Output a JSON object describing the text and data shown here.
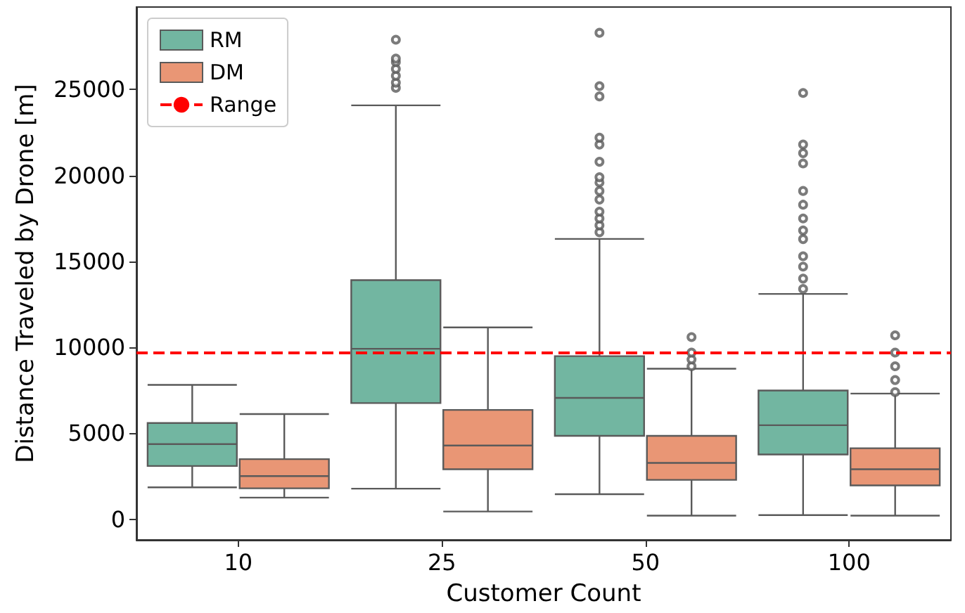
{
  "chart_data": {
    "type": "box",
    "xlabel": "Customer Count",
    "ylabel": "Distance Traveled by Drone [m]",
    "categories": [
      "10",
      "25",
      "50",
      "100"
    ],
    "ylim": [
      -1200,
      29800
    ],
    "yticks": [
      0,
      5000,
      10000,
      15000,
      20000,
      25000
    ],
    "grid": false,
    "legend": "top left",
    "marker": "circle",
    "series": [
      {
        "name": "RM",
        "color": "#72b6a1",
        "boxes": [
          {
            "low": 1860,
            "q1": 3100,
            "median": 4370,
            "q3": 5600,
            "high": 7820
          },
          {
            "low": 1780,
            "q1": 6760,
            "median": 9920,
            "q3": 13910,
            "high": 24080,
            "outliers": [
              25100,
              25400,
              25800,
              26200,
              26600,
              26800,
              27900
            ]
          },
          {
            "low": 1460,
            "q1": 4850,
            "median": 7060,
            "q3": 9490,
            "high": 16310,
            "outliers": [
              16700,
              17100,
              17500,
              17900,
              18600,
              19100,
              19600,
              19900,
              20800,
              21800,
              22200,
              24600,
              25200,
              28300
            ]
          },
          {
            "low": 240,
            "q1": 3770,
            "median": 5470,
            "q3": 7490,
            "high": 13110,
            "outliers": [
              13400,
              14000,
              14700,
              15300,
              16300,
              16800,
              17500,
              18300,
              19100,
              20700,
              21300,
              21800,
              24800
            ]
          }
        ]
      },
      {
        "name": "DM",
        "color": "#e99675",
        "boxes": [
          {
            "low": 1260,
            "q1": 1800,
            "median": 2510,
            "q3": 3500,
            "high": 6120
          },
          {
            "low": 450,
            "q1": 2910,
            "median": 4290,
            "q3": 6360,
            "high": 11160
          },
          {
            "low": 210,
            "q1": 2290,
            "median": 3280,
            "q3": 4850,
            "high": 8760,
            "outliers": [
              8900,
              9300,
              9700,
              10600
            ]
          },
          {
            "low": 210,
            "q1": 1970,
            "median": 2910,
            "q3": 4130,
            "high": 7310,
            "outliers": [
              7400,
              8100,
              8900,
              9700,
              10700
            ]
          }
        ]
      }
    ],
    "ref_lines": [
      {
        "axis": "y",
        "value": 9700,
        "label": "Range",
        "color": "#ff0000",
        "line_style": "dashed"
      }
    ]
  }
}
